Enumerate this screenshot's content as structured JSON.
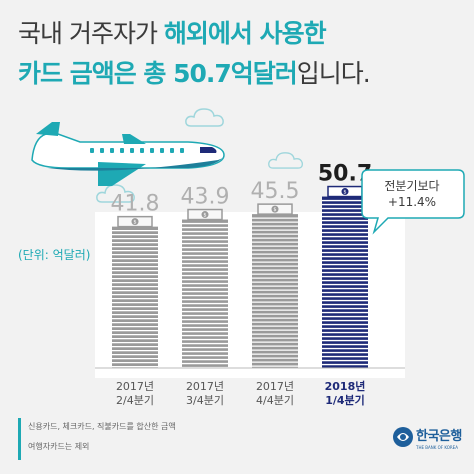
{
  "headline": {
    "line1_plain": "국내 거주자가 ",
    "line1_accent": "해외에서 사용한",
    "line2_accent": "카드 금액은 총 50.7억달러",
    "line2_plain": "입니다."
  },
  "unit_label": "(단위: 억달러)",
  "callout": {
    "line1": "전분기보다",
    "line2": "+11.4%"
  },
  "footnotes": [
    "신용카드, 체크카드, 직불카드를 합산한 금액",
    "여행자카드는 제외"
  ],
  "brand": {
    "name": "한국은행",
    "subtitle": "THE BANK OF KOREA"
  },
  "colors": {
    "accent": "#1ea9b4",
    "text": "#3b3b3b",
    "bar_gray": "#9a9a9a",
    "bar_highlight": "#1e2a78",
    "brand": "#1e5f9b"
  },
  "chart_data": {
    "type": "bar",
    "categories": [
      {
        "year": "2017년",
        "quarter": "2/4분기"
      },
      {
        "year": "2017년",
        "quarter": "3/4분기"
      },
      {
        "year": "2017년",
        "quarter": "4/4분기"
      },
      {
        "year": "2018년",
        "quarter": "1/4분기"
      }
    ],
    "values": [
      41.8,
      43.9,
      45.5,
      50.7
    ],
    "value_labels": [
      "41.8",
      "43.9",
      "45.5",
      "50.7"
    ],
    "highlight_index": 3,
    "ylim": [
      0,
      55
    ],
    "grid": false,
    "title": "",
    "xlabel": "",
    "ylabel": ""
  }
}
